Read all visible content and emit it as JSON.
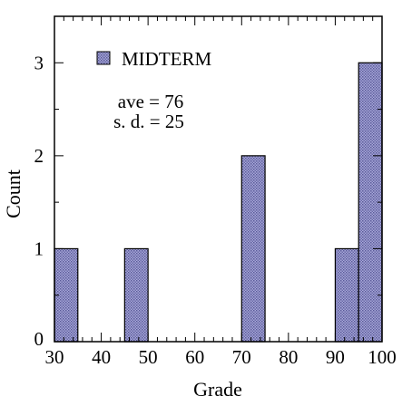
{
  "chart_data": {
    "type": "bar",
    "xlabel": "Grade",
    "ylabel": "Count",
    "xlim": [
      30,
      100
    ],
    "ylim": [
      0,
      3.5
    ],
    "x_ticks": [
      "30",
      "40",
      "50",
      "60",
      "70",
      "80",
      "90",
      "100"
    ],
    "y_ticks": [
      "0",
      "1",
      "2",
      "3"
    ],
    "bin_width": 5,
    "bins": [
      {
        "start": 30,
        "end": 35,
        "count": 1
      },
      {
        "start": 35,
        "end": 40,
        "count": 0
      },
      {
        "start": 40,
        "end": 45,
        "count": 0
      },
      {
        "start": 45,
        "end": 50,
        "count": 1
      },
      {
        "start": 50,
        "end": 55,
        "count": 0
      },
      {
        "start": 55,
        "end": 60,
        "count": 0
      },
      {
        "start": 60,
        "end": 65,
        "count": 0
      },
      {
        "start": 65,
        "end": 70,
        "count": 0
      },
      {
        "start": 70,
        "end": 75,
        "count": 2
      },
      {
        "start": 75,
        "end": 80,
        "count": 0
      },
      {
        "start": 80,
        "end": 85,
        "count": 0
      },
      {
        "start": 85,
        "end": 90,
        "count": 0
      },
      {
        "start": 90,
        "end": 95,
        "count": 1
      },
      {
        "start": 95,
        "end": 100,
        "count": 3
      }
    ],
    "series": [
      {
        "name": "MIDTERM"
      }
    ],
    "legend": {
      "placement": "top-left",
      "label_color": "#1a1aa6"
    },
    "annotations": {
      "average": "ave = 76",
      "sd": "s. d. = 25"
    },
    "bar_color": "#9090c8",
    "grid": false
  }
}
